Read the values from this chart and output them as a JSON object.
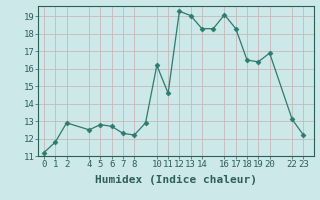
{
  "x": [
    0,
    1,
    2,
    4,
    5,
    6,
    7,
    8,
    9,
    10,
    11,
    12,
    13,
    14,
    15,
    16,
    17,
    18,
    19,
    20,
    22,
    23
  ],
  "y": [
    11.2,
    11.8,
    12.9,
    12.5,
    12.8,
    12.7,
    12.3,
    12.2,
    12.9,
    16.2,
    14.6,
    19.3,
    19.05,
    18.3,
    18.3,
    19.1,
    18.3,
    16.5,
    16.4,
    16.9,
    13.1,
    12.2
  ],
  "line_color": "#2d7a6e",
  "marker": "D",
  "marker_size": 2.5,
  "bg_color": "#cce8e8",
  "grid_color": "#c8b8b8",
  "xlabel": "Humidex (Indice chaleur)",
  "xlabel_fontsize": 8,
  "xlim": [
    -0.5,
    23.9
  ],
  "ylim": [
    11,
    19.6
  ],
  "xticks": [
    0,
    1,
    2,
    4,
    5,
    6,
    7,
    8,
    10,
    11,
    12,
    13,
    14,
    16,
    17,
    18,
    19,
    20,
    22,
    23
  ],
  "yticks": [
    11,
    12,
    13,
    14,
    15,
    16,
    17,
    18,
    19
  ],
  "tick_fontsize": 6.5
}
